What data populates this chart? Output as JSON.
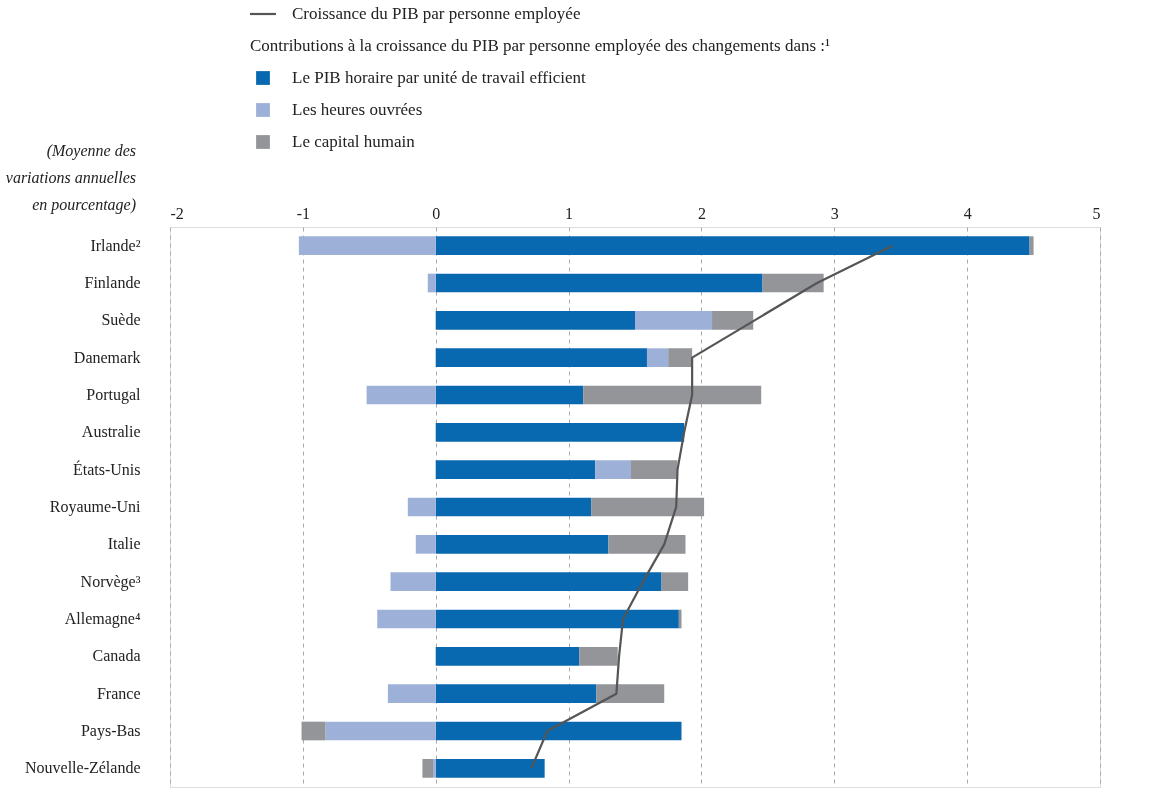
{
  "chart_data": {
    "type": "bar",
    "orientation": "horizontal",
    "stacked": true,
    "xlabel": "(Moyenne des variations annuelles en pourcentage)",
    "legend_title": "Contributions à la croissance du PIB par personne employée des changements dans :¹",
    "categories": [
      "Irlande²",
      "Finlande",
      "Suède",
      "Danemark",
      "Portugal",
      "Australie",
      "États-Unis",
      "Royaume-Uni",
      "Italie",
      "Norvège³",
      "Allemagne⁴",
      "Canada",
      "France",
      "Pays-Bas",
      "Nouvelle-Zélande"
    ],
    "series": [
      {
        "name": "Croissance du PIB par personne employée",
        "type": "line",
        "color": "#555555",
        "values": [
          3.44,
          2.87,
          2.4,
          1.93,
          1.93,
          1.87,
          1.82,
          1.81,
          1.72,
          1.56,
          1.41,
          1.38,
          1.36,
          0.84,
          0.72
        ]
      },
      {
        "name": "Le PIB horaire par unité de travail efficient",
        "color": "#0868b0",
        "values": [
          4.47,
          2.46,
          1.5,
          1.59,
          1.11,
          1.87,
          1.2,
          1.17,
          1.3,
          1.7,
          1.83,
          1.08,
          1.21,
          1.85,
          0.82
        ]
      },
      {
        "name": "Les heures ouvrées",
        "color": "#9db0d8",
        "values": [
          -1.03,
          -0.06,
          0.58,
          0.16,
          -0.52,
          null,
          0.27,
          -0.21,
          -0.15,
          -0.34,
          -0.44,
          null,
          -0.36,
          -0.83,
          -0.02
        ]
      },
      {
        "name": "Le capital humain",
        "color": "#939598",
        "values": [
          0.03,
          0.46,
          0.31,
          0.18,
          1.34,
          null,
          0.35,
          0.85,
          0.58,
          0.2,
          0.02,
          0.29,
          0.51,
          -0.18,
          -0.08
        ]
      }
    ],
    "xlim": [
      -2,
      5
    ],
    "xticks": [
      -2,
      -1,
      0,
      1,
      2,
      3,
      4,
      5
    ],
    "grid": "x",
    "legend": "top"
  }
}
